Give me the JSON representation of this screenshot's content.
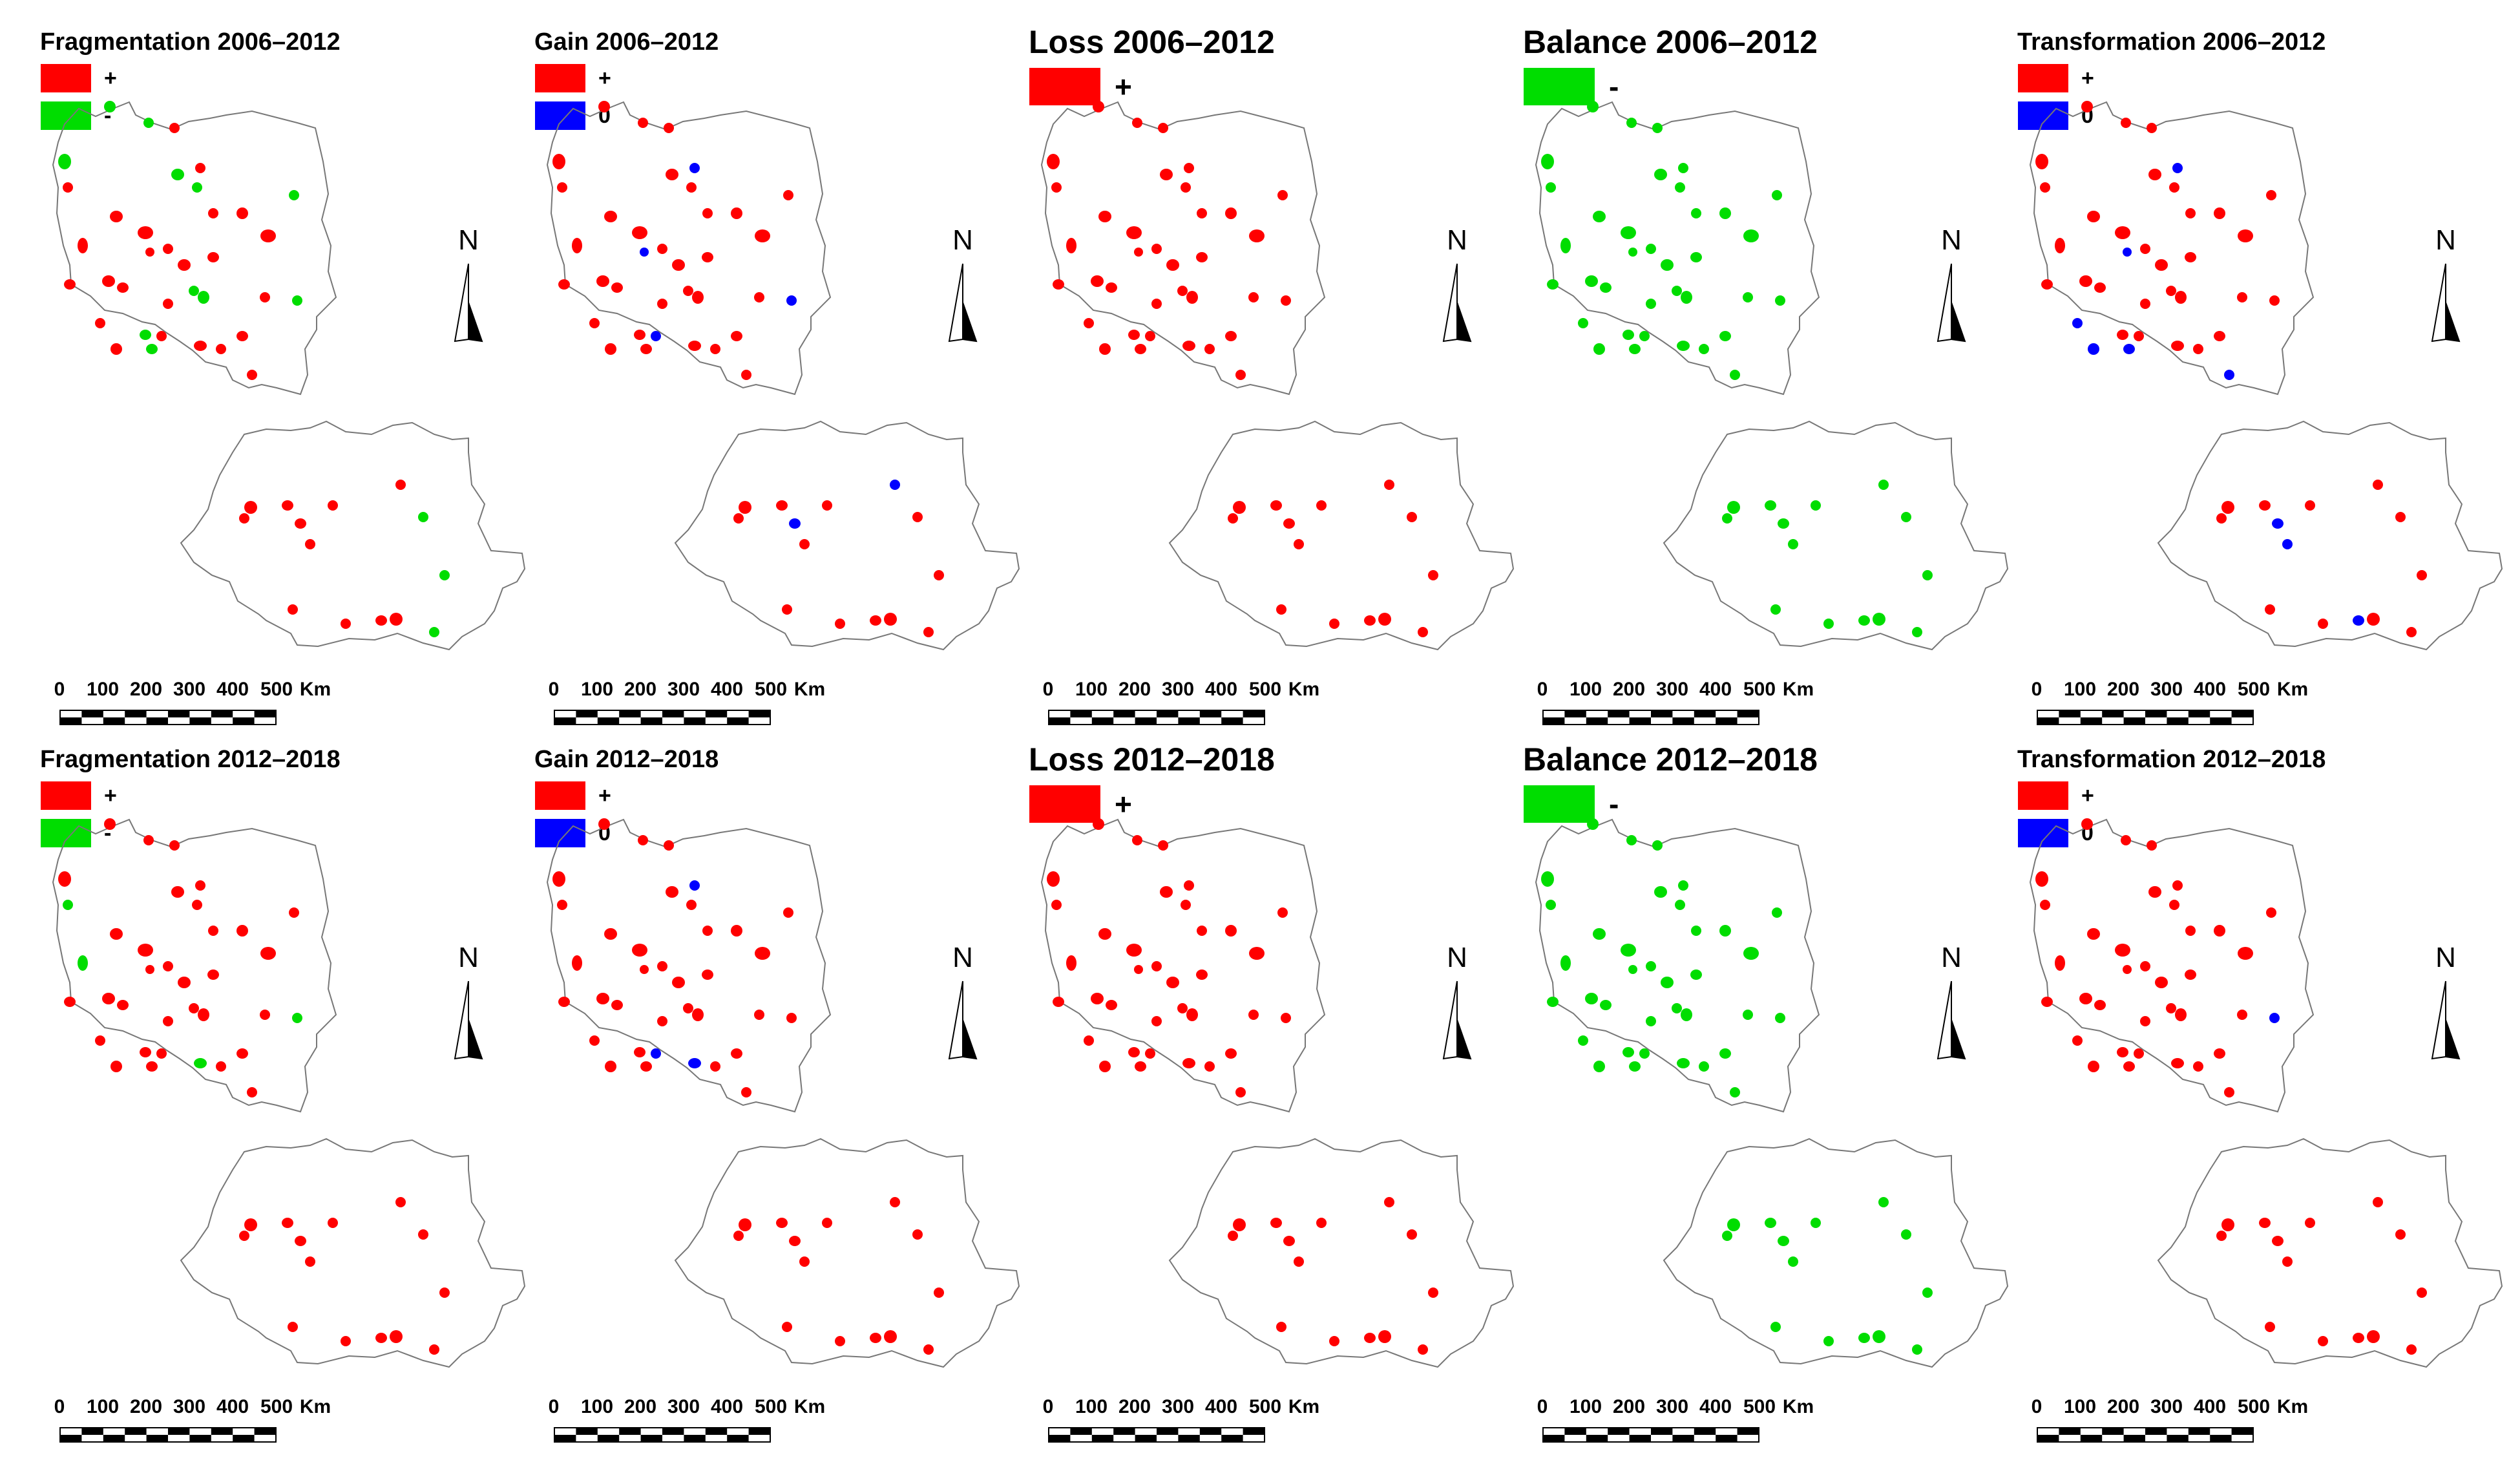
{
  "panels": [
    {
      "title": "Fragmentation 2006–2012",
      "legend": [
        {
          "color": "#ff0000",
          "label": "+"
        },
        {
          "color": "#00dd00",
          "label": "-"
        }
      ]
    },
    {
      "title": "Gain 2006–2012",
      "legend": [
        {
          "color": "#ff0000",
          "label": "+"
        },
        {
          "color": "#0000ff",
          "label": "0"
        }
      ]
    },
    {
      "title": "Loss 2006–2012",
      "legend": [
        {
          "color": "#ff0000",
          "label": "+"
        }
      ]
    },
    {
      "title": "Balance 2006–2012",
      "legend": [
        {
          "color": "#00dd00",
          "label": "-"
        }
      ]
    },
    {
      "title": "Transformation 2006–2012",
      "legend": [
        {
          "color": "#ff0000",
          "label": "+"
        },
        {
          "color": "#0000ff",
          "label": "0"
        }
      ]
    },
    {
      "title": "Fragmentation 2012–2018",
      "legend": [
        {
          "color": "#ff0000",
          "label": "+"
        },
        {
          "color": "#00dd00",
          "label": "-"
        }
      ]
    },
    {
      "title": "Gain 2012–2018",
      "legend": [
        {
          "color": "#ff0000",
          "label": "+"
        },
        {
          "color": "#0000ff",
          "label": "0"
        }
      ]
    },
    {
      "title": "Loss 2012–2018",
      "legend": [
        {
          "color": "#ff0000",
          "label": "+"
        }
      ]
    },
    {
      "title": "Balance 2012–2018",
      "legend": [
        {
          "color": "#00dd00",
          "label": "-"
        }
      ]
    },
    {
      "title": "Transformation 2012–2018",
      "legend": [
        {
          "color": "#ff0000",
          "label": "+"
        },
        {
          "color": "#0000ff",
          "label": "0"
        }
      ]
    }
  ],
  "scale": {
    "ticks": [
      "0",
      "100",
      "200",
      "300",
      "400",
      "500"
    ],
    "unit": "Km"
  },
  "north_label": "N",
  "colors": {
    "plus": "#ff0000",
    "minus": "#00dd00",
    "zero": "#0000ff",
    "outline": "#777777"
  }
}
